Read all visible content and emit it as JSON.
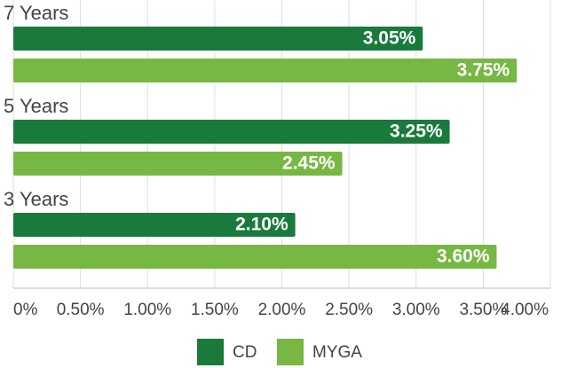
{
  "chart_data": {
    "type": "bar",
    "categories": [
      "7 Years",
      "5 Years",
      "3 Years"
    ],
    "series": [
      {
        "name": "CD",
        "color": "#1a7a3c",
        "values": [
          3.05,
          3.25,
          2.1
        ],
        "value_labels": [
          "3.05%",
          "3.25%",
          "2.10%"
        ]
      },
      {
        "name": "MYGA",
        "color": "#76b843",
        "values": [
          3.75,
          2.45,
          3.6
        ],
        "value_labels": [
          "3.75%",
          "2.45%",
          "3.60%"
        ]
      }
    ],
    "xlim": [
      0,
      4
    ],
    "xticks": [
      {
        "value": 0,
        "label": "0%"
      },
      {
        "value": 0.5,
        "label": "0.50%"
      },
      {
        "value": 1,
        "label": "1.00%"
      },
      {
        "value": 1.5,
        "label": "1.50%"
      },
      {
        "value": 2,
        "label": "2.00%"
      },
      {
        "value": 2.5,
        "label": "2.50%"
      },
      {
        "value": 3,
        "label": "3.00%"
      },
      {
        "value": 3.5,
        "label": "3.50%"
      },
      {
        "value": 4,
        "label": "4.00%"
      }
    ],
    "grid": true,
    "legend": "bottom"
  }
}
